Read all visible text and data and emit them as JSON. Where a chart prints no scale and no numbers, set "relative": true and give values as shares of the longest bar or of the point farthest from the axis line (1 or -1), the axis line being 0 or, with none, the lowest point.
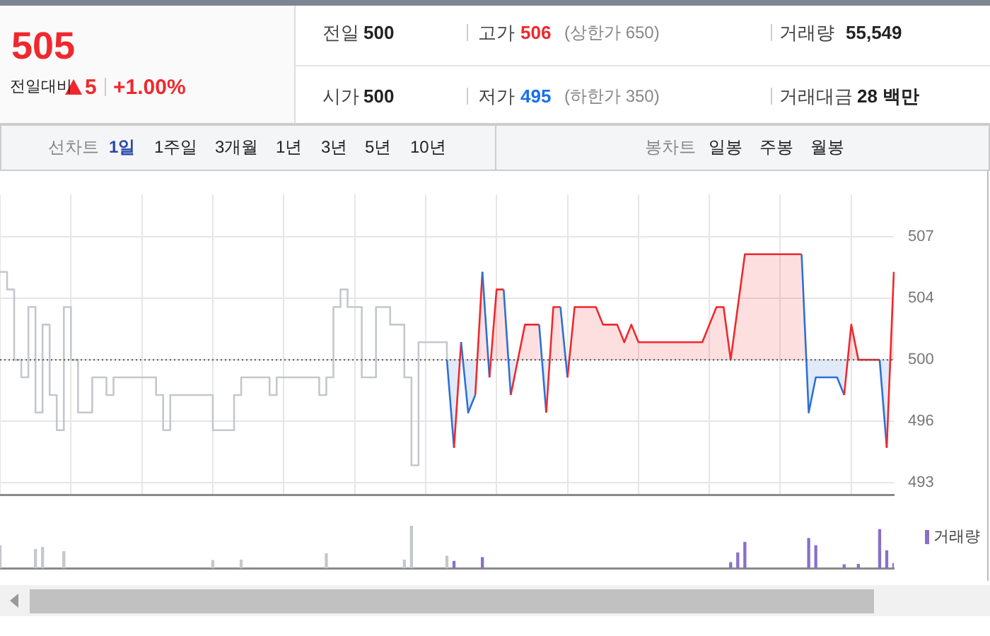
{
  "chart_data": [
    {
      "type": "other",
      "annotations": [
        "505",
        "전일대비",
        "5",
        "+1.00%",
        "전일",
        "500",
        "고가",
        "506",
        "(상한가 650)",
        "거래량",
        "55,549",
        "시가",
        "500",
        "저가",
        "495",
        "(하한가 350)",
        "거래대금",
        "28 백만",
        "선차트",
        "1일",
        "1주일",
        "3개월",
        "1년",
        "3년",
        "5년",
        "10년",
        "봉차트",
        "일봉",
        "주봉",
        "월봉"
      ]
    },
    {
      "type": "line",
      "tick_labels": "y",
      "grid": true,
      "legend": false,
      "ylim": [
        492.3,
        509.4
      ],
      "yticks": [
        493,
        {
          "value": 496.5,
          "label": "496"
        },
        500,
        {
          "value": 503.5,
          "label": "504"
        },
        507
      ],
      "ref_lines": [
        {
          "axis": "y",
          "value": 500,
          "line_style": "dotted",
          "color": "#555555"
        }
      ],
      "categories": [
        null,
        null,
        null,
        null,
        null,
        null,
        null,
        null,
        null,
        null,
        null,
        null,
        null,
        null,
        null,
        null,
        null,
        null,
        null,
        null,
        null,
        null,
        null,
        null,
        null,
        null,
        null,
        null,
        null,
        null,
        null,
        null,
        null,
        null,
        null,
        null,
        null,
        null,
        null,
        null,
        null,
        null,
        null,
        null,
        null,
        null,
        null,
        null,
        null,
        null,
        null,
        null,
        null,
        null,
        null,
        null,
        null,
        null,
        null,
        null,
        null,
        null,
        null,
        null,
        null,
        null,
        null,
        null,
        null,
        null,
        null,
        null,
        null,
        null,
        null,
        null,
        null,
        null,
        null,
        null,
        null,
        null,
        null,
        null,
        null,
        null,
        null,
        null,
        null,
        null,
        null,
        null,
        null,
        null,
        null,
        null,
        null,
        null,
        null,
        null,
        null,
        null,
        null,
        null,
        null,
        null,
        null,
        null,
        null,
        null,
        null,
        null,
        null,
        null,
        null,
        null,
        null,
        null,
        null,
        null,
        null,
        null,
        null,
        null,
        null,
        null,
        null
      ],
      "series": [
        {
          "type": "step",
          "color": "#c4c7cc",
          "values": [
            505,
            504,
            500,
            499,
            503,
            497,
            502,
            498,
            496,
            503,
            500,
            497,
            497,
            499,
            499,
            498,
            499,
            499,
            499,
            499,
            499,
            499,
            498,
            496,
            498,
            498,
            498,
            498,
            498,
            498,
            496,
            496,
            496,
            498,
            499,
            499,
            499,
            499,
            498,
            499,
            499,
            499,
            499,
            499,
            499,
            498,
            499,
            503,
            504,
            503,
            503,
            499,
            499,
            503,
            503,
            502,
            502,
            499,
            494,
            501,
            501,
            501,
            501,
            500,
            null,
            null,
            null,
            null,
            null,
            null,
            null,
            null,
            null,
            null,
            null,
            null,
            null,
            null,
            null,
            null,
            null,
            null,
            null,
            null,
            null,
            null,
            null,
            null,
            null,
            null,
            null,
            null,
            null,
            null,
            null,
            null,
            null,
            null,
            null,
            null,
            null,
            null,
            null,
            null,
            null,
            null,
            null,
            null,
            null,
            null,
            null,
            null,
            null,
            null,
            null,
            null,
            null,
            null,
            null,
            null,
            null,
            null,
            null,
            null,
            null,
            null,
            null
          ]
        },
        {
          "type": "area",
          "values": [
            null,
            null,
            null,
            null,
            null,
            null,
            null,
            null,
            null,
            null,
            null,
            null,
            null,
            null,
            null,
            null,
            null,
            null,
            null,
            null,
            null,
            null,
            null,
            null,
            null,
            null,
            null,
            null,
            null,
            null,
            null,
            null,
            null,
            null,
            null,
            null,
            null,
            null,
            null,
            null,
            null,
            null,
            null,
            null,
            null,
            null,
            null,
            null,
            null,
            null,
            null,
            null,
            null,
            null,
            null,
            null,
            null,
            null,
            null,
            null,
            null,
            null,
            null,
            500,
            495,
            501,
            497,
            498,
            505,
            499,
            504,
            504,
            498,
            500,
            502,
            502,
            502,
            497,
            503,
            503,
            499,
            503,
            503,
            503,
            503,
            502,
            502,
            502,
            501,
            502,
            501,
            501,
            501,
            501,
            501,
            501,
            501,
            501,
            501,
            501,
            502,
            503,
            503,
            500,
            503,
            506,
            506,
            506,
            506,
            506,
            506,
            506,
            506,
            506,
            497,
            499,
            499,
            499,
            499,
            498,
            502,
            500,
            500,
            500,
            500,
            495,
            505
          ],
          "colors": [
            null,
            null,
            null,
            null,
            null,
            null,
            null,
            null,
            null,
            null,
            null,
            null,
            null,
            null,
            null,
            null,
            null,
            null,
            null,
            null,
            null,
            null,
            null,
            null,
            null,
            null,
            null,
            null,
            null,
            null,
            null,
            null,
            null,
            null,
            null,
            null,
            null,
            null,
            null,
            null,
            null,
            null,
            null,
            null,
            null,
            null,
            null,
            null,
            null,
            null,
            null,
            null,
            null,
            null,
            null,
            null,
            null,
            null,
            null,
            null,
            null,
            null,
            null,
            "#f0282d",
            "#2f6fd6",
            "#f0282d",
            "#2f6fd6",
            "#2f6fd6",
            "#f0282d",
            "#2f6fd6",
            "#f0282d",
            "#f0282d",
            "#2f6fd6",
            "#f0282d",
            "#f0282d",
            "#f0282d",
            "#f0282d",
            "#2f6fd6",
            "#f0282d",
            "#f0282d",
            "#2f6fd6",
            "#f0282d",
            "#f0282d",
            "#f0282d",
            "#f0282d",
            "#f0282d",
            "#f0282d",
            "#f0282d",
            "#f0282d",
            "#f0282d",
            "#f0282d",
            "#f0282d",
            "#f0282d",
            "#f0282d",
            "#f0282d",
            "#f0282d",
            "#f0282d",
            "#f0282d",
            "#f0282d",
            "#f0282d",
            "#f0282d",
            "#f0282d",
            "#f0282d",
            "#f0282d",
            "#f0282d",
            "#f0282d",
            "#f0282d",
            "#f0282d",
            "#f0282d",
            "#f0282d",
            "#f0282d",
            "#f0282d",
            "#f0282d",
            "#f0282d",
            "#2f6fd6",
            "#2f6fd6",
            "#2f6fd6",
            "#2f6fd6",
            "#2f6fd6",
            "#2f6fd6",
            "#f0282d",
            "#f0282d",
            "#f0282d",
            "#f0282d",
            "#f0282d",
            "#2f6fd6",
            "#f0282d"
          ]
        }
      ]
    },
    {
      "type": "bar",
      "relative": true,
      "tick_labels": false,
      "legend": "top right",
      "categories": [
        null,
        null,
        null,
        null,
        null,
        null,
        null,
        null,
        null,
        null,
        null,
        null,
        null,
        null,
        null,
        null,
        null,
        null,
        null,
        null,
        null,
        null,
        null,
        null,
        null,
        null,
        null,
        null,
        null,
        null,
        null,
        null,
        null,
        null,
        null,
        null,
        null,
        null,
        null,
        null,
        null,
        null,
        null,
        null,
        null,
        null,
        null,
        null,
        null,
        null,
        null,
        null,
        null,
        null,
        null,
        null,
        null,
        null,
        null,
        null,
        null,
        null,
        null,
        null,
        null,
        null,
        null,
        null,
        null,
        null,
        null,
        null,
        null,
        null,
        null,
        null,
        null,
        null,
        null,
        null,
        null,
        null,
        null,
        null,
        null,
        null,
        null,
        null,
        null,
        null,
        null,
        null,
        null,
        null,
        null,
        null,
        null,
        null,
        null,
        null,
        null,
        null,
        null,
        null,
        null,
        null,
        null,
        null,
        null,
        null,
        null,
        null,
        null,
        null,
        null,
        null,
        null,
        null,
        null,
        null,
        null,
        null,
        null,
        null,
        null,
        null,
        null
      ],
      "series": [
        {
          "color": "#c4c7cc",
          "values": [
            0.53,
            null,
            null,
            null,
            null,
            0.44,
            0.49,
            null,
            null,
            0.39,
            null,
            null,
            null,
            null,
            null,
            null,
            null,
            null,
            null,
            null,
            null,
            null,
            null,
            null,
            null,
            null,
            null,
            null,
            null,
            null,
            0.18,
            null,
            null,
            null,
            0.19,
            null,
            null,
            null,
            null,
            null,
            null,
            null,
            null,
            null,
            null,
            null,
            0.34,
            null,
            null,
            null,
            null,
            null,
            null,
            null,
            null,
            null,
            null,
            0.19,
            1,
            null,
            null,
            null,
            null,
            0.28,
            null,
            null,
            null,
            null,
            null,
            null,
            null,
            null,
            null,
            null,
            null,
            null,
            null,
            null,
            null,
            null,
            null,
            null,
            null,
            null,
            null,
            null,
            null,
            null,
            null,
            null,
            null,
            null,
            null,
            null,
            null,
            null,
            null,
            null,
            null,
            null,
            null,
            null,
            null,
            null,
            null,
            null,
            null,
            null,
            null,
            null,
            null,
            null,
            null,
            null,
            null,
            null,
            null,
            null,
            null,
            null,
            null,
            null,
            null,
            null,
            null,
            null,
            null
          ]
        },
        {
          "name": "거래량",
          "color": "#8a6fc9",
          "values": [
            null,
            null,
            null,
            null,
            null,
            null,
            null,
            null,
            null,
            null,
            null,
            null,
            null,
            null,
            null,
            null,
            null,
            null,
            null,
            null,
            null,
            null,
            null,
            null,
            null,
            null,
            null,
            null,
            null,
            null,
            null,
            null,
            null,
            null,
            null,
            null,
            null,
            null,
            null,
            null,
            null,
            null,
            null,
            null,
            null,
            null,
            null,
            null,
            null,
            null,
            null,
            null,
            null,
            null,
            null,
            null,
            null,
            null,
            null,
            null,
            null,
            null,
            null,
            null,
            0.16,
            null,
            null,
            null,
            0.25,
            null,
            null,
            null,
            null,
            null,
            null,
            null,
            null,
            null,
            null,
            null,
            null,
            null,
            null,
            null,
            null,
            null,
            null,
            null,
            null,
            null,
            null,
            null,
            null,
            null,
            null,
            null,
            null,
            null,
            null,
            null,
            null,
            null,
            null,
            0.13,
            0.36,
            0.61,
            null,
            null,
            null,
            null,
            null,
            null,
            null,
            null,
            0.7,
            0.53,
            null,
            null,
            null,
            0.08,
            null,
            0.09,
            null,
            null,
            0.91,
            0.41,
            0.11
          ]
        }
      ]
    }
  ]
}
